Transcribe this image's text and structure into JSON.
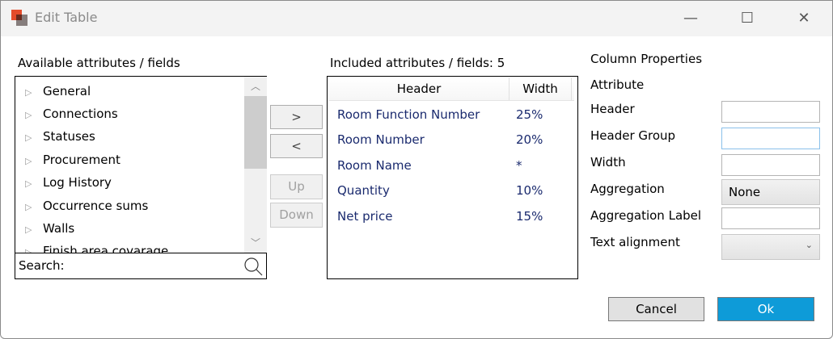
{
  "window": {
    "title": "Edit Table",
    "minimize": "—",
    "maximize": "☐",
    "close": "✕"
  },
  "available": {
    "label": "Available attributes / fields",
    "items": [
      "General",
      "Connections",
      "Statuses",
      "Procurement",
      "Log History",
      "Occurrence sums",
      "Walls",
      "Finish area covarage"
    ],
    "search_label": "Search:"
  },
  "buttons": {
    "add": ">",
    "remove": "<",
    "up": "Up",
    "down": "Down",
    "cancel": "Cancel",
    "ok": "Ok"
  },
  "included": {
    "label": "Included attributes / fields: 5",
    "columns": [
      "Header",
      "Width"
    ],
    "rows": [
      {
        "header": "Room Function Number",
        "width": "25%"
      },
      {
        "header": "Room Number",
        "width": "20%"
      },
      {
        "header": "Room Name",
        "width": "*"
      },
      {
        "header": "Quantity",
        "width": "10%"
      },
      {
        "header": "Net price",
        "width": "15%"
      }
    ]
  },
  "properties": {
    "title": "Column Properties",
    "attribute": "Attribute",
    "header": "Header",
    "header_group": "Header Group",
    "width": "Width",
    "aggregation": "Aggregation",
    "aggregation_value": "None",
    "aggregation_label": "Aggregation Label",
    "text_alignment": "Text alignment"
  },
  "colors": {
    "accent": "#0e9bd8",
    "text_blue": "#1a2a6e"
  }
}
